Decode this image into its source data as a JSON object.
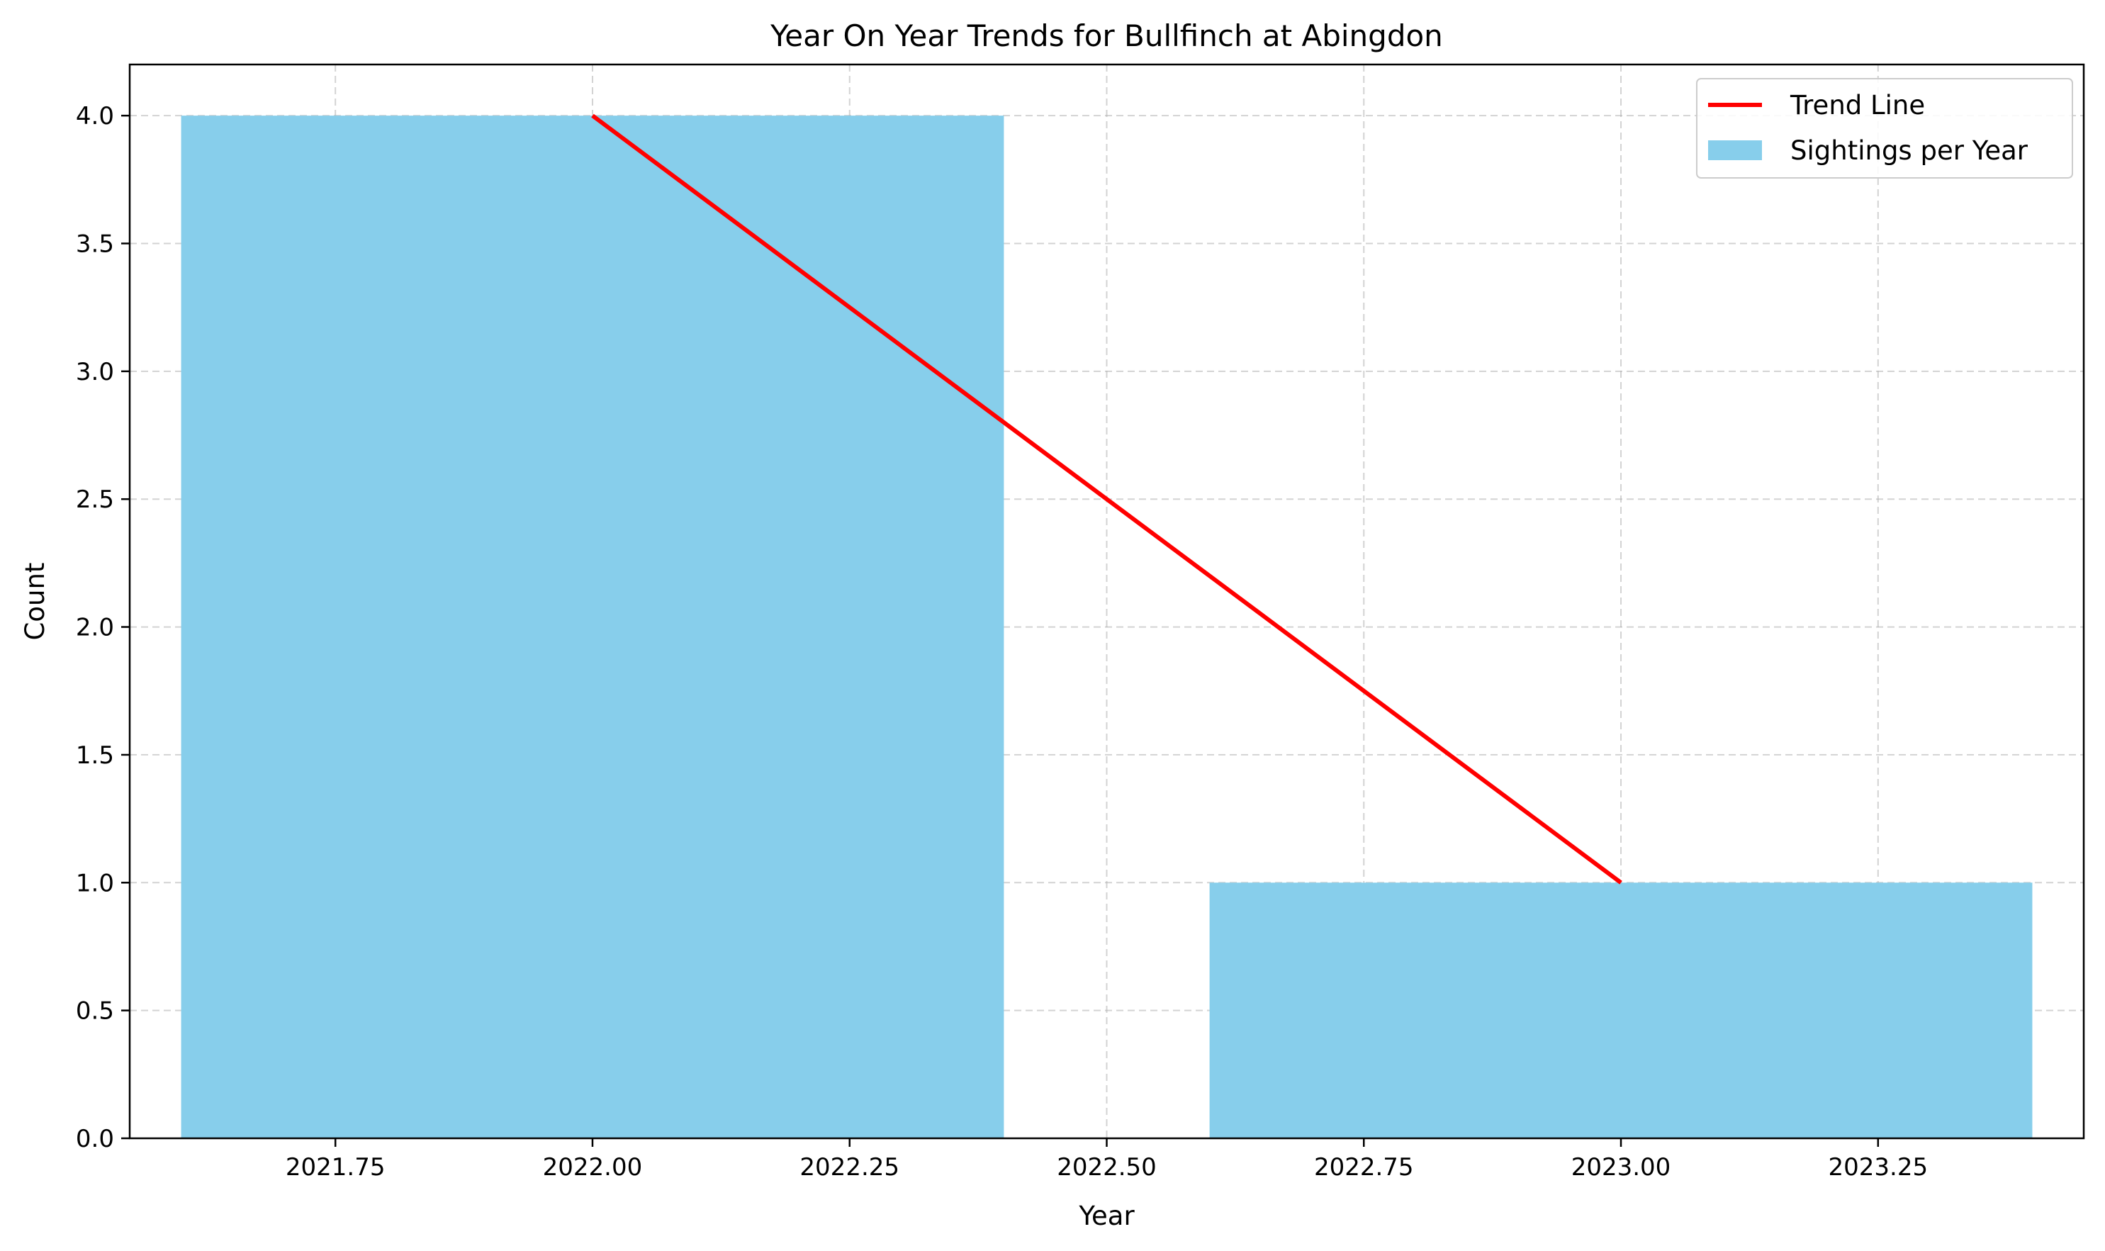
{
  "chart_data": {
    "type": "bar",
    "title": "Year On Year Trends for Bullfinch at Abingdon",
    "xlabel": "Year",
    "ylabel": "Count",
    "xlim": [
      2021.55,
      2023.45
    ],
    "ylim": [
      0,
      4.2
    ],
    "bar_width": 0.8,
    "grid": true,
    "legend_position": "top-right",
    "xticks": [
      2021.75,
      2022.0,
      2022.25,
      2022.5,
      2022.75,
      2023.0,
      2023.25
    ],
    "xtick_labels": [
      "2021.75",
      "2022.00",
      "2022.25",
      "2022.50",
      "2022.75",
      "2023.00",
      "2023.25"
    ],
    "yticks": [
      0,
      0.5,
      1.0,
      1.5,
      2.0,
      2.5,
      3.0,
      3.5,
      4.0
    ],
    "ytick_labels": [
      "0.0",
      "0.5",
      "1.0",
      "1.5",
      "2.0",
      "2.5",
      "3.0",
      "3.5",
      "4.0"
    ],
    "series": [
      {
        "name": "Sightings per Year",
        "kind": "bar",
        "color": "#87ceeb",
        "x": [
          2022,
          2023
        ],
        "values": [
          4,
          1
        ]
      },
      {
        "name": "Trend Line",
        "kind": "line",
        "color": "#ff0000",
        "x": [
          2022,
          2023
        ],
        "values": [
          4,
          1
        ]
      }
    ],
    "legend": [
      {
        "label": "Trend Line",
        "kind": "line",
        "color": "#ff0000"
      },
      {
        "label": "Sightings per Year",
        "kind": "bar",
        "color": "#87ceeb"
      }
    ]
  }
}
